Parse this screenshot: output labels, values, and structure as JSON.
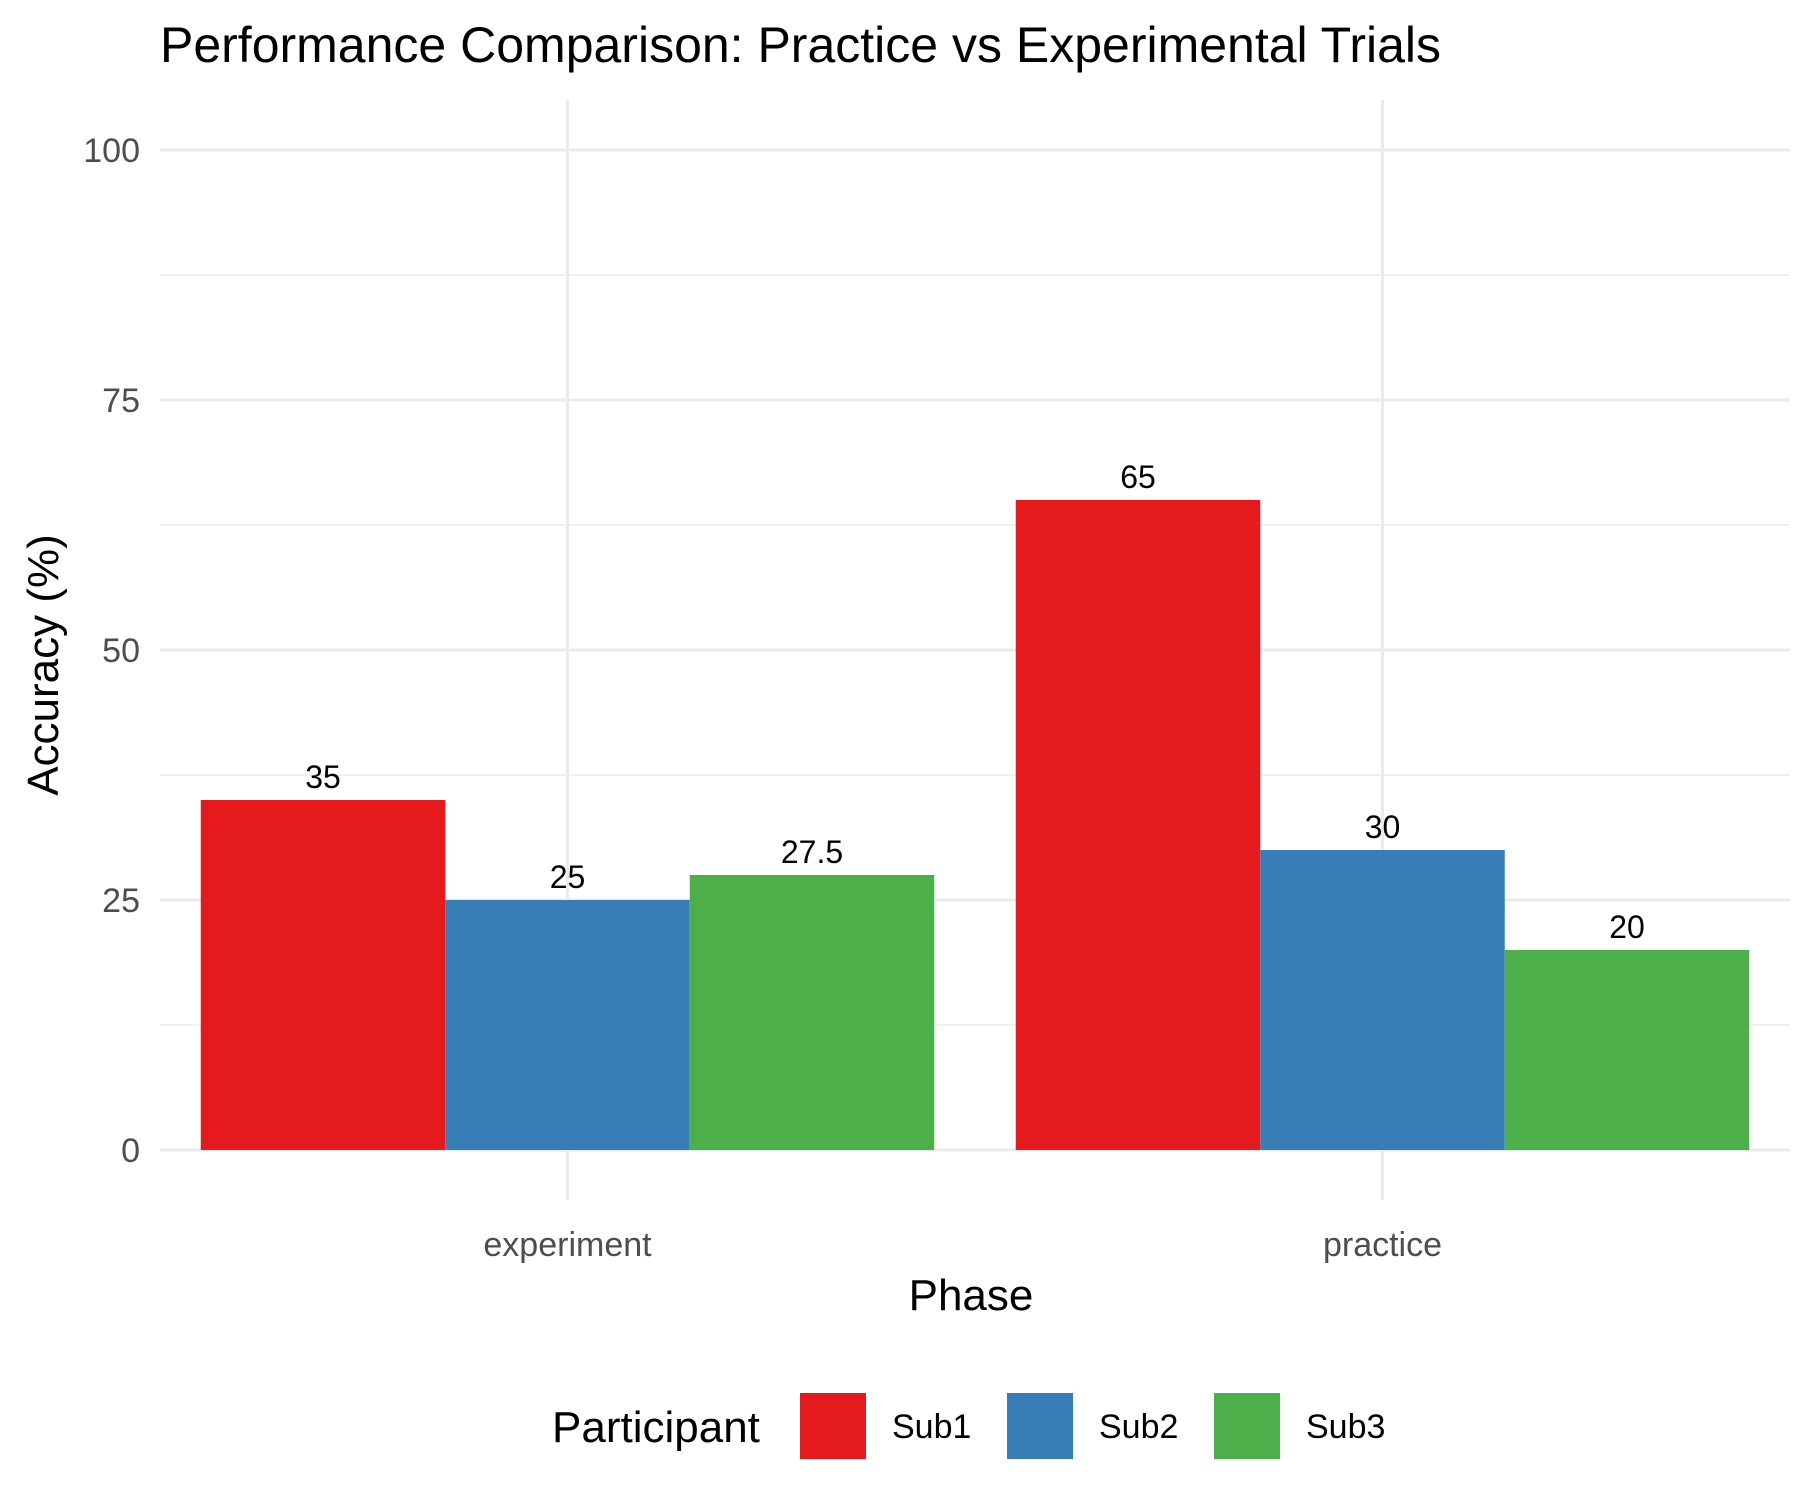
{
  "chart_data": {
    "type": "bar",
    "title": "Performance Comparison: Practice vs Experimental Trials",
    "xlabel": "Phase",
    "ylabel": "Accuracy (%)",
    "categories": [
      "experiment",
      "practice"
    ],
    "series": [
      {
        "name": "Sub1",
        "color": "#E41A1C",
        "values": [
          35,
          65
        ],
        "labels": [
          "35",
          "65"
        ]
      },
      {
        "name": "Sub2",
        "color": "#377EB8",
        "values": [
          25,
          30
        ],
        "labels": [
          "25",
          "30"
        ]
      },
      {
        "name": "Sub3",
        "color": "#4DAF4A",
        "values": [
          27.5,
          20
        ],
        "labels": [
          "27.5",
          "20"
        ]
      }
    ],
    "ylim": [
      -5,
      105
    ],
    "yticks": [
      0,
      25,
      50,
      75,
      100
    ],
    "ytick_labels": [
      "0",
      "25",
      "50",
      "75",
      "100"
    ],
    "grid": true,
    "legend": {
      "title": "Participant",
      "position": "bottom"
    }
  }
}
